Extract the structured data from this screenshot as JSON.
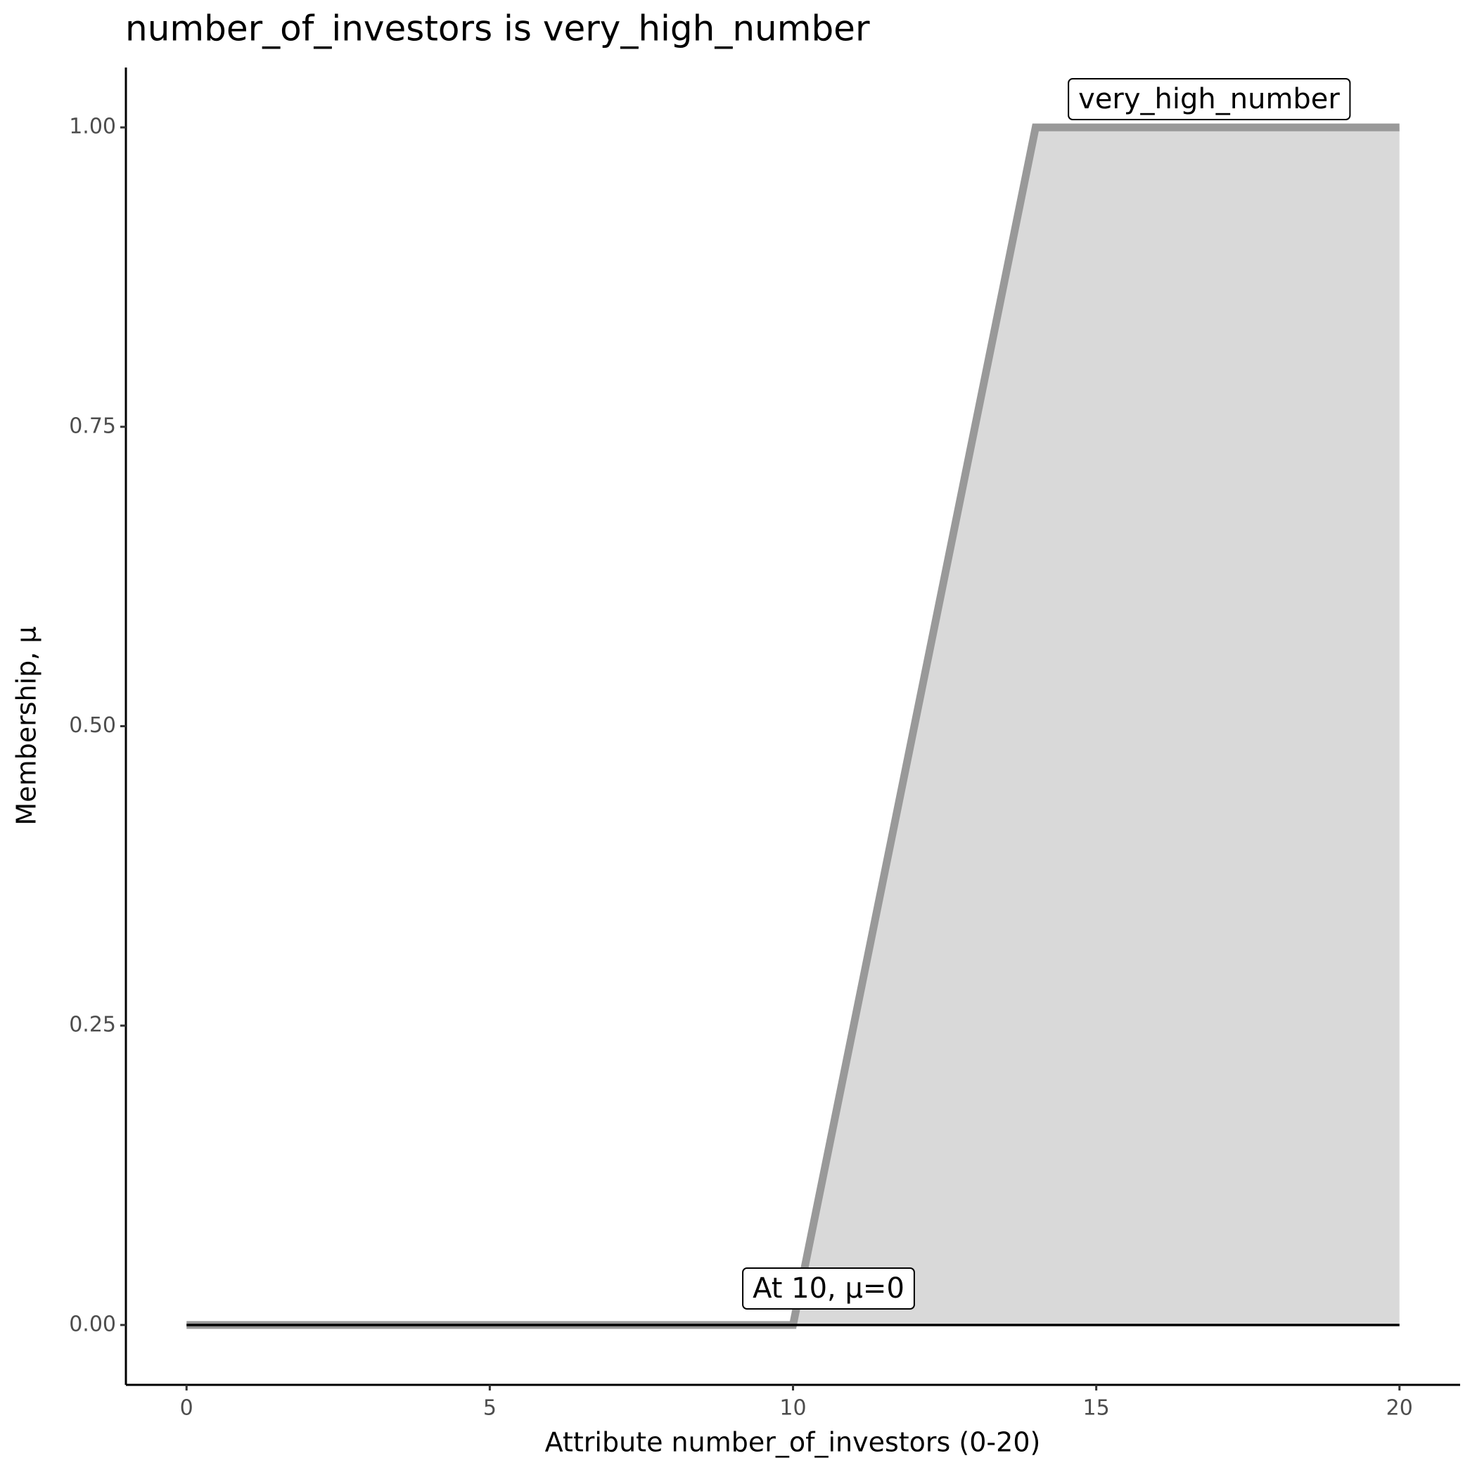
{
  "chart_data": {
    "type": "line",
    "title": "number_of_investors is very_high_number",
    "xlabel": "Attribute number_of_investors (0-20)",
    "ylabel": "Membership, μ",
    "series": [
      {
        "color": "#999999",
        "fill": "#d9d9d9",
        "x": [
          0,
          10,
          14,
          20
        ],
        "values": [
          0,
          0,
          1,
          1
        ]
      },
      {
        "color": "#000000",
        "x": [
          0,
          20
        ],
        "values": [
          0,
          0
        ]
      }
    ],
    "annotations": [
      "very_high_number",
      "At 10, μ=0"
    ],
    "xlim": [
      -1,
      21
    ],
    "xticks": [
      0,
      5,
      10,
      15,
      20
    ],
    "ylim": [
      -0.05,
      1.05
    ],
    "yticks": [
      {
        "value": 0,
        "label": "0.00"
      },
      {
        "value": 0.25,
        "label": "0.25"
      },
      {
        "value": 0.5,
        "label": "0.50"
      },
      {
        "value": 0.75,
        "label": "0.75"
      },
      {
        "value": 1,
        "label": "1.00"
      }
    ],
    "grid": false
  }
}
